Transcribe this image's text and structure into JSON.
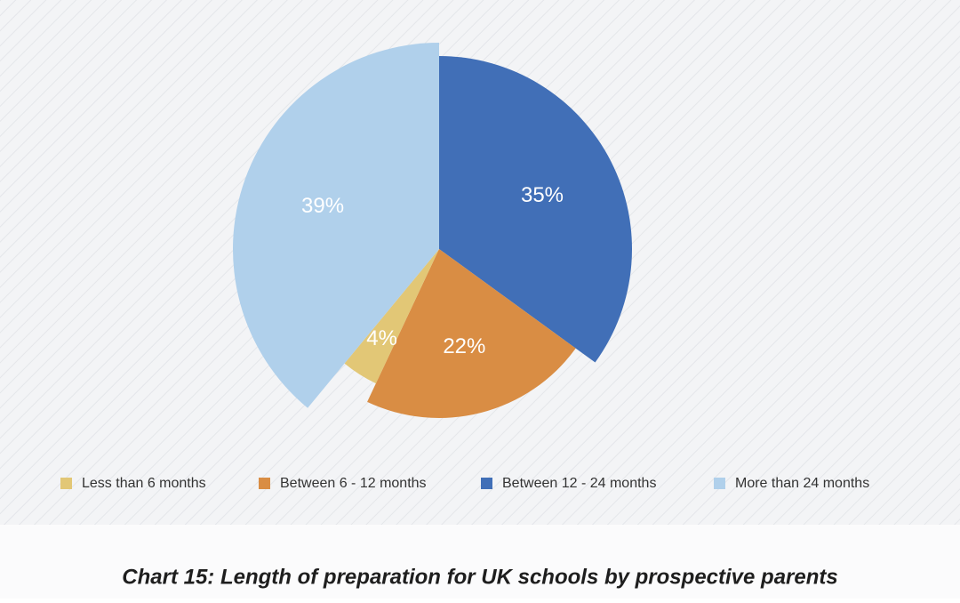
{
  "chart_data": {
    "type": "pie",
    "title": "Chart 15: Length of preparation for UK schools by prospective parents",
    "categories": [
      "Less than 6 months",
      "Between 6 - 12 months",
      "Between 12 - 24 months",
      "More than 24 months"
    ],
    "values": [
      4,
      22,
      35,
      39
    ],
    "value_labels": [
      "4%",
      "22%",
      "35%",
      "39%"
    ],
    "colors": [
      "#e2c776",
      "#d98d44",
      "#416fb7",
      "#b0d0eb"
    ],
    "legend": "bottom"
  }
}
